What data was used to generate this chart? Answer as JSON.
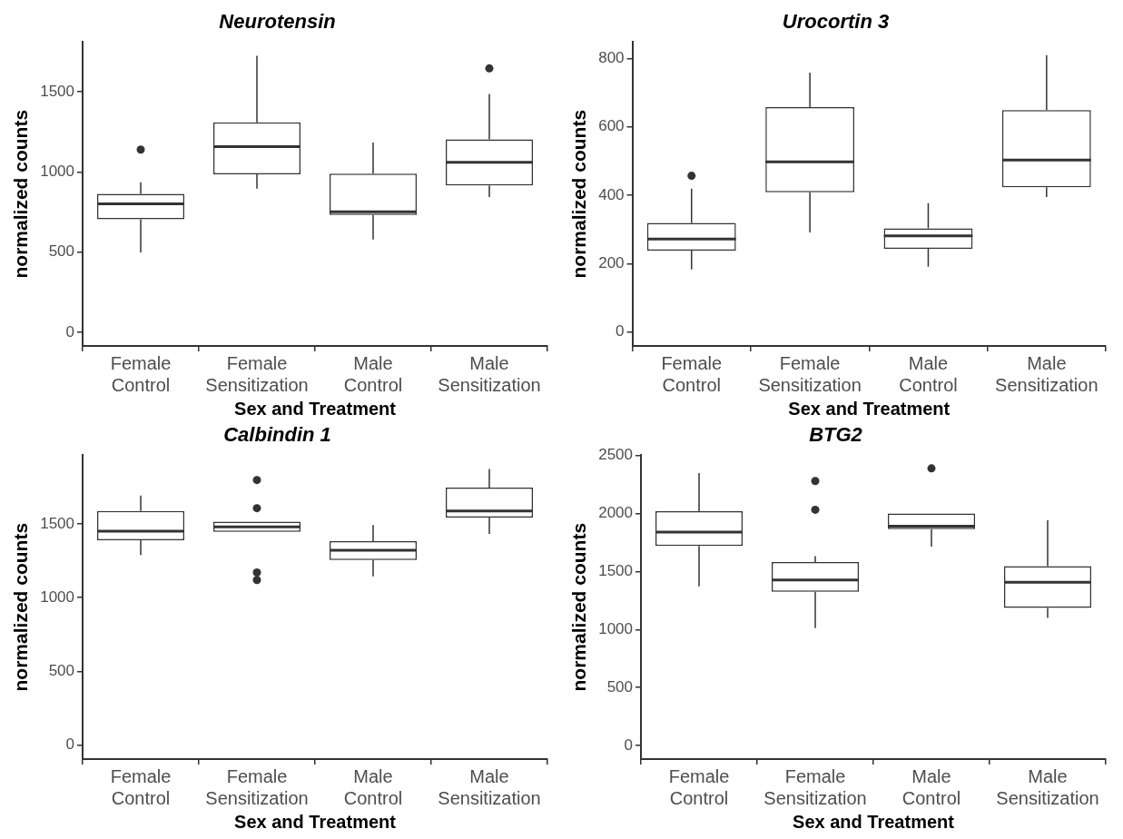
{
  "chart_data": [
    {
      "type": "box",
      "title": "Neurotensin",
      "xlabel": "Sex and Treatment",
      "ylabel": "normalized counts",
      "categories": [
        "Female Control",
        "Female Sensitization",
        "Male Control",
        "Male Sensitization"
      ],
      "ylim": [
        -85,
        1810
      ],
      "yticks": [
        0,
        500,
        1000,
        1500
      ],
      "boxes": [
        {
          "low": 498,
          "q1": 705,
          "median": 801,
          "q3": 864,
          "high": 936,
          "outliers": [
            1140
          ]
        },
        {
          "low": 896,
          "q1": 986,
          "median": 1158,
          "q3": 1309,
          "high": 1724
        },
        {
          "low": 579,
          "q1": 732,
          "median": 752,
          "q3": 990,
          "high": 1183
        },
        {
          "low": 844,
          "q1": 916,
          "median": 1060,
          "q3": 1203,
          "high": 1486,
          "outliers": [
            1646
          ]
        }
      ]
    },
    {
      "type": "box",
      "title": "Urocortin 3",
      "xlabel": "Sex and Treatment",
      "ylabel": "normalized counts",
      "categories": [
        "Female Control",
        "Female Sensitization",
        "Male Control",
        "Male Sensitization"
      ],
      "ylim": [
        -41,
        848
      ],
      "yticks": [
        0,
        200,
        400,
        600,
        800
      ],
      "boxes": [
        {
          "low": 183,
          "q1": 238,
          "median": 272,
          "q3": 319,
          "high": 419,
          "outliers": [
            457
          ]
        },
        {
          "low": 291,
          "q1": 409,
          "median": 498,
          "q3": 658,
          "high": 759
        },
        {
          "low": 191,
          "q1": 243,
          "median": 281,
          "q3": 303,
          "high": 377
        },
        {
          "low": 395,
          "q1": 423,
          "median": 503,
          "q3": 649,
          "high": 810
        }
      ]
    },
    {
      "type": "box",
      "title": "Calbindin 1",
      "xlabel": "Sex and Treatment",
      "ylabel": "normalized counts",
      "categories": [
        "Female Control",
        "Female Sensitization",
        "Male Control",
        "Male Sensitization"
      ],
      "ylim": [
        -95,
        1966
      ],
      "yticks": [
        0,
        500,
        1000,
        1500
      ],
      "boxes": [
        {
          "low": 1290,
          "q1": 1390,
          "median": 1451,
          "q3": 1588,
          "high": 1693
        },
        {
          "low": 1446,
          "q1": 1446,
          "median": 1480,
          "q3": 1515,
          "high": 1515,
          "outliers": [
            1798,
            1607,
            1171,
            1120
          ]
        },
        {
          "low": 1144,
          "q1": 1256,
          "median": 1322,
          "q3": 1383,
          "high": 1493
        },
        {
          "low": 1432,
          "q1": 1544,
          "median": 1588,
          "q3": 1746,
          "high": 1873
        }
      ]
    },
    {
      "type": "box",
      "title": "BTG2",
      "xlabel": "Sex and Treatment",
      "ylabel": "normalized counts",
      "categories": [
        "Female Control",
        "Female Sensitization",
        "Male Control",
        "Male Sensitization"
      ],
      "ylim": [
        -116,
        2500
      ],
      "yticks": [
        0,
        500,
        1000,
        1500,
        2000,
        2500
      ],
      "boxes": [
        {
          "low": 1372,
          "q1": 1719,
          "median": 1838,
          "q3": 2018,
          "high": 2346
        },
        {
          "low": 1012,
          "q1": 1324,
          "median": 1427,
          "q3": 1581,
          "high": 1632,
          "outliers": [
            2278,
            2031
          ]
        },
        {
          "low": 1713,
          "q1": 1864,
          "median": 1889,
          "q3": 1998,
          "high": 1998,
          "outliers": [
            2387
          ]
        },
        {
          "low": 1099,
          "q1": 1186,
          "median": 1407,
          "q3": 1545,
          "high": 1941
        }
      ]
    }
  ]
}
